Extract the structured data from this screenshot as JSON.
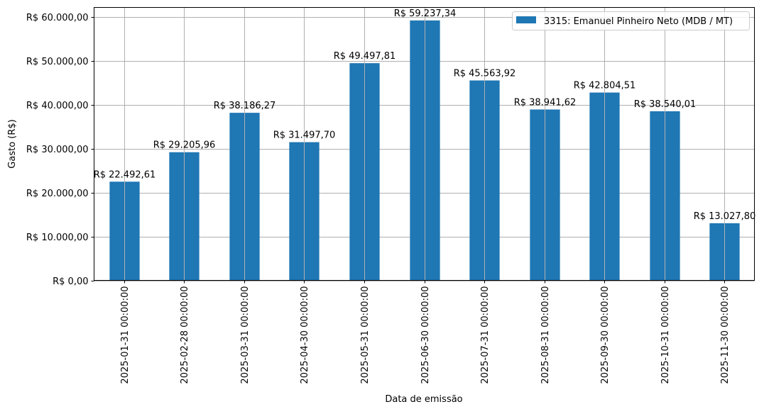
{
  "chart_data": {
    "type": "bar",
    "title": "",
    "xlabel": "Data de emissão",
    "ylabel": "Gasto (R$)",
    "ylim": [
      0,
      62199
    ],
    "grid": true,
    "legend_position": "top-right",
    "categories": [
      "2025-01-31 00:00:00",
      "2025-02-28 00:00:00",
      "2025-03-31 00:00:00",
      "2025-04-30 00:00:00",
      "2025-05-31 00:00:00",
      "2025-06-30 00:00:00",
      "2025-07-31 00:00:00",
      "2025-08-31 00:00:00",
      "2025-09-30 00:00:00",
      "2025-10-31 00:00:00",
      "2025-11-30 00:00:00"
    ],
    "series": [
      {
        "name": "3315: Emanuel Pinheiro Neto (MDB / MT)",
        "color": "#1f77b4",
        "values": [
          22492.61,
          29205.96,
          38186.27,
          31497.7,
          49497.81,
          59237.34,
          45563.92,
          38941.62,
          42804.51,
          38540.01,
          13027.8
        ],
        "labels": [
          "R$ 22.492,61",
          "R$ 29.205,96",
          "R$ 38.186,27",
          "R$ 31.497,70",
          "R$ 49.497,81",
          "R$ 59.237,34",
          "R$ 45.563,92",
          "R$ 38.941,62",
          "R$ 42.804,51",
          "R$ 38.540,01",
          "R$ 13.027,80"
        ]
      }
    ],
    "yticks": [
      0,
      10000,
      20000,
      30000,
      40000,
      50000,
      60000
    ],
    "ytick_labels": [
      "R$ 0,00",
      "R$ 10.000,00",
      "R$ 20.000,00",
      "R$ 30.000,00",
      "R$ 40.000,00",
      "R$ 50.000,00",
      "R$ 60.000,00"
    ]
  }
}
